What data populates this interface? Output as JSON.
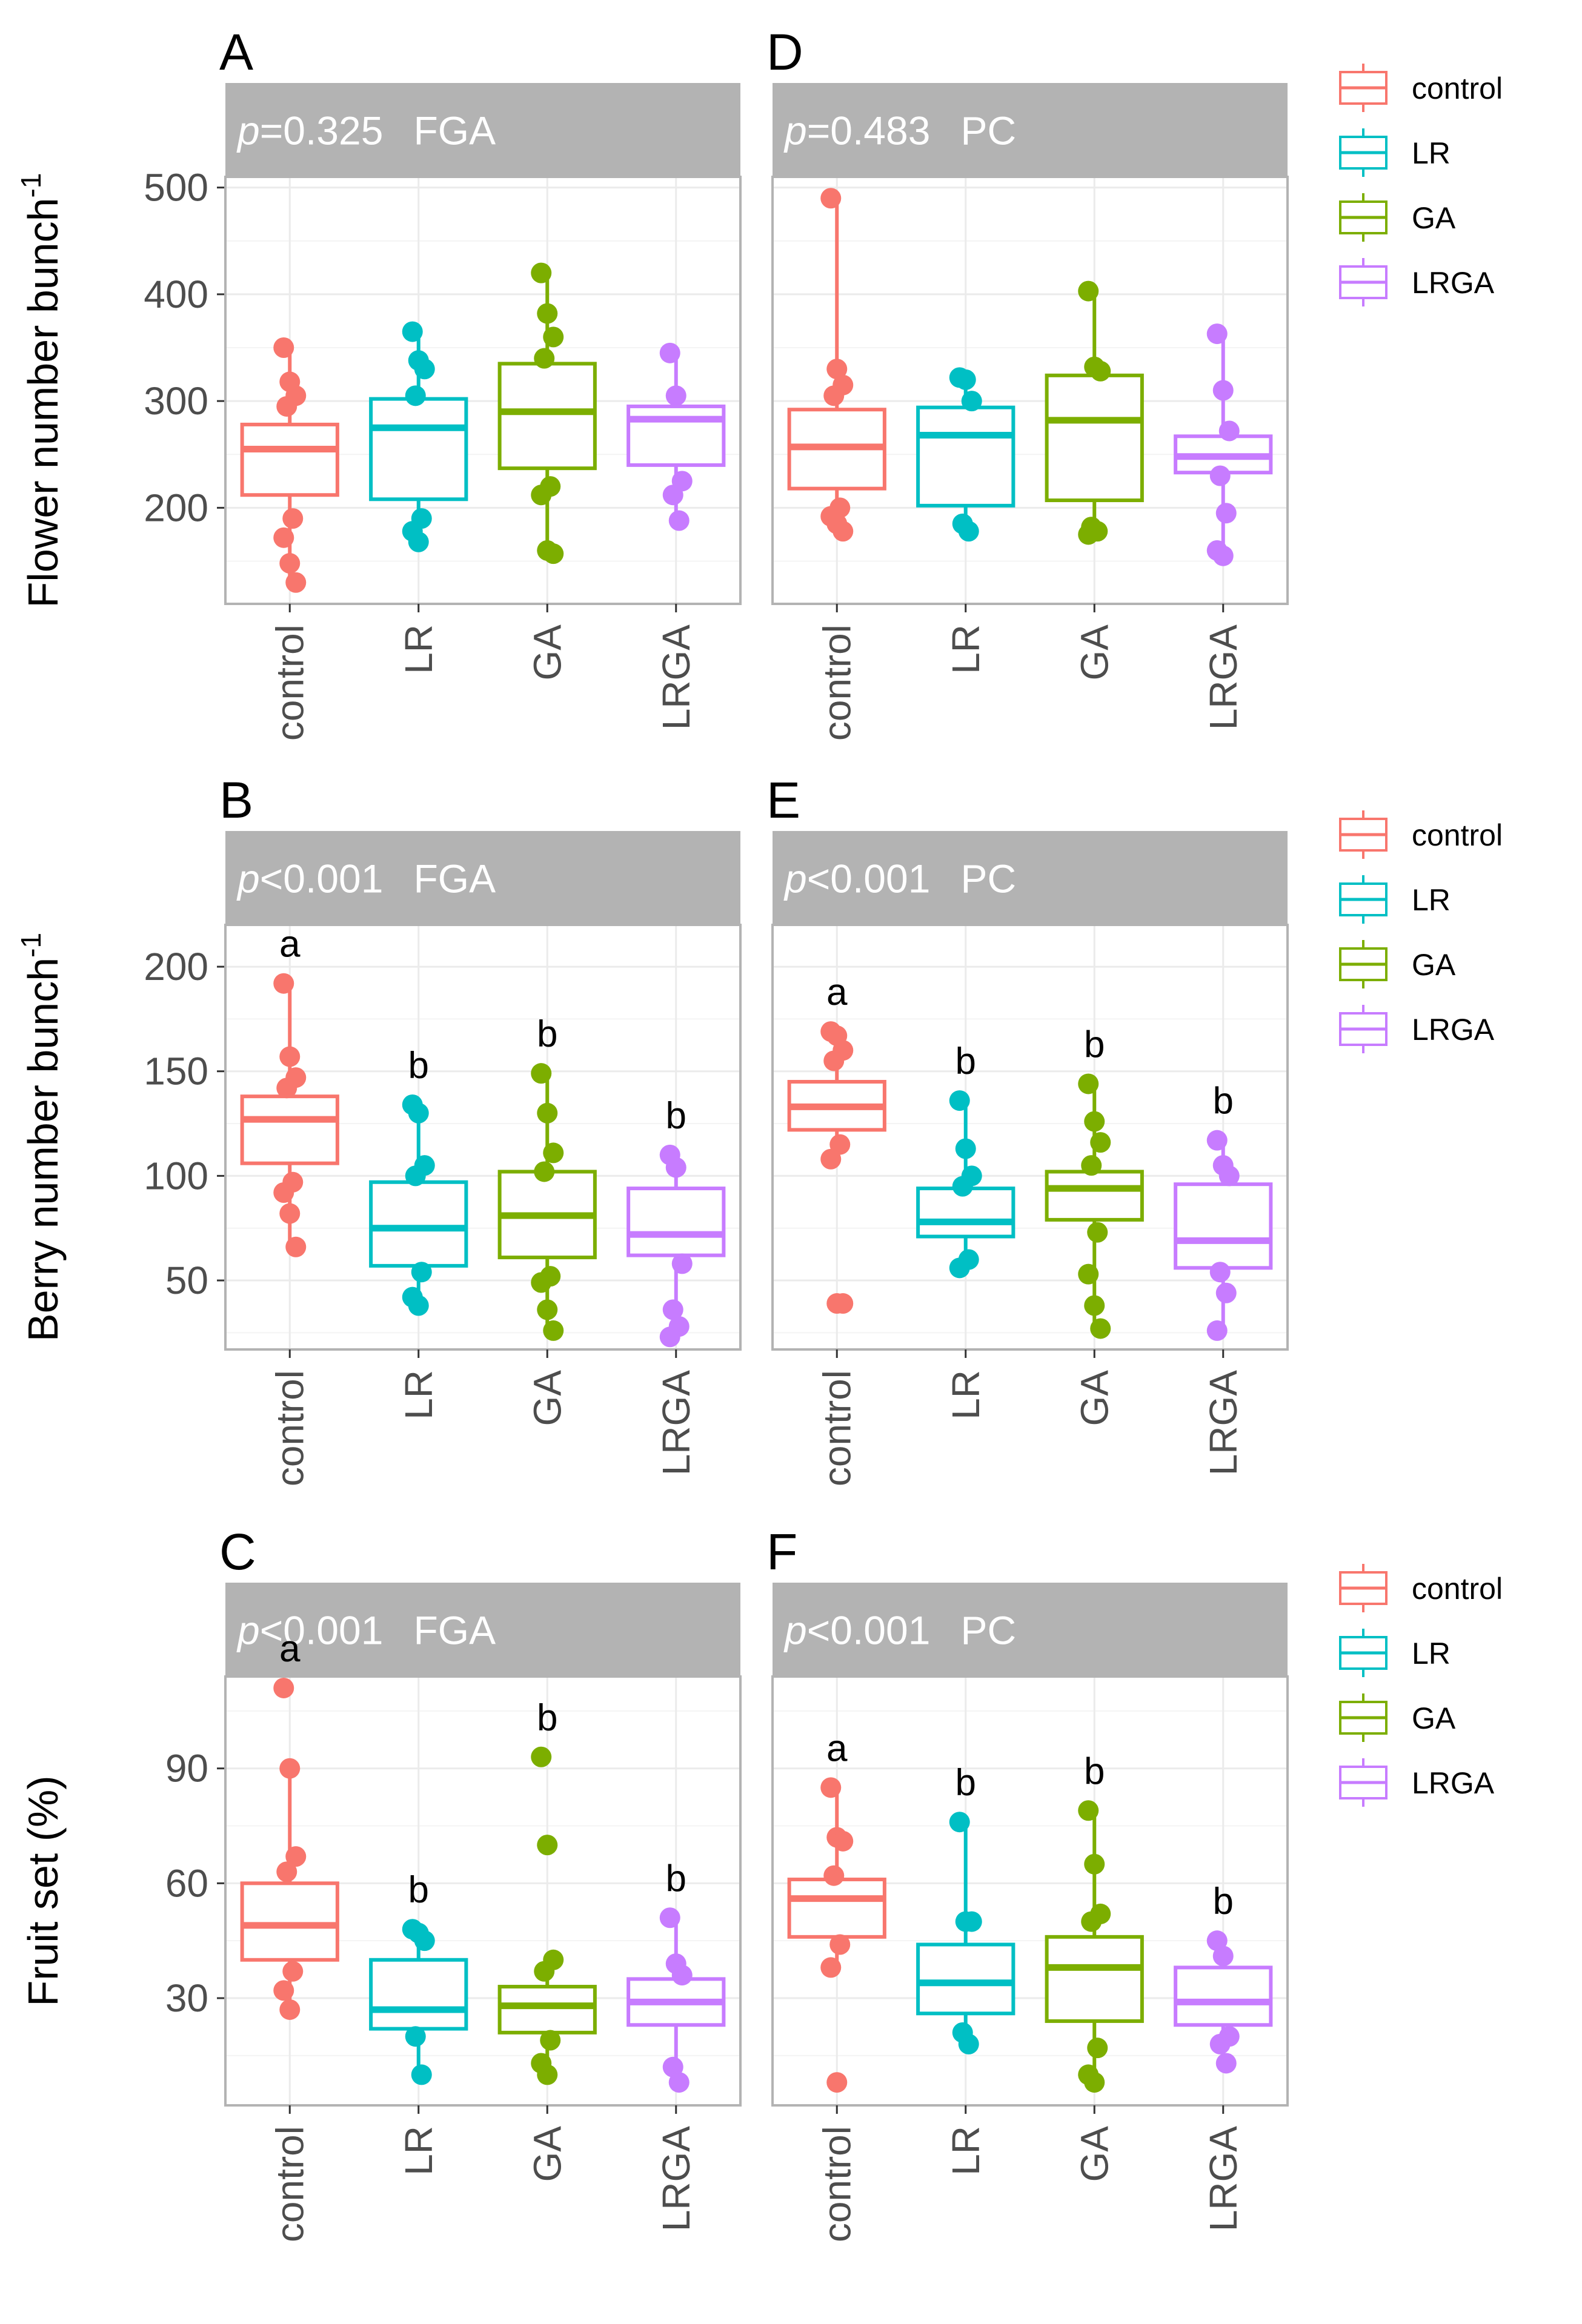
{
  "colors": {
    "control": "#F8766D",
    "LR": "#00BFC4",
    "GA": "#7CAE00",
    "LRGA": "#C77CFF",
    "strip": "#b3b3b3",
    "strip_text": "#ffffff",
    "grid_major": "#ebebeb",
    "grid_minor": "#f4f4f4",
    "panel_border": "#b3b3b3",
    "axis_text": "#4d4d4d"
  },
  "legend": {
    "items": [
      {
        "label": "control",
        "group": "control"
      },
      {
        "label": "LR",
        "group": "LR"
      },
      {
        "label": "GA",
        "group": "GA"
      },
      {
        "label": "LRGA",
        "group": "LRGA"
      }
    ]
  },
  "chart_data": [
    {
      "row": 0,
      "type": "boxplot",
      "ylabel": "Flower number bunch",
      "ylabel_superscript": "-1",
      "ylim": [
        110,
        510
      ],
      "yticks": [
        200,
        300,
        400,
        500
      ],
      "categories": [
        "control",
        "LR",
        "GA",
        "LRGA"
      ],
      "panels": [
        {
          "letter": "A",
          "p_symbol": "p",
          "p_text": "=0.325",
          "facet": "FGA",
          "boxes": [
            {
              "group": "control",
              "q1": 212,
              "median": 255,
              "q3": 278,
              "whisker_low": 130,
              "whisker_high": 350,
              "letter": ""
            },
            {
              "group": "LR",
              "q1": 208,
              "median": 275,
              "q3": 302,
              "whisker_low": 168,
              "whisker_high": 365,
              "letter": ""
            },
            {
              "group": "GA",
              "q1": 237,
              "median": 290,
              "q3": 335,
              "whisker_low": 157,
              "whisker_high": 420,
              "letter": ""
            },
            {
              "group": "LRGA",
              "q1": 240,
              "median": 283,
              "q3": 295,
              "whisker_low": 188,
              "whisker_high": 345,
              "letter": ""
            }
          ],
          "points": {
            "control": [
              350,
              318,
              305,
              295,
              190,
              172,
              148,
              130
            ],
            "LR": [
              365,
              338,
              330,
              305,
              190,
              178,
              168
            ],
            "GA": [
              420,
              382,
              360,
              340,
              220,
              212,
              160,
              157
            ],
            "LRGA": [
              345,
              305,
              225,
              212,
              188
            ]
          }
        },
        {
          "letter": "D",
          "p_symbol": "p",
          "p_text": "=0.483",
          "facet": "PC",
          "boxes": [
            {
              "group": "control",
              "q1": 218,
              "median": 257,
              "q3": 292,
              "whisker_low": 178,
              "whisker_high": 490,
              "letter": ""
            },
            {
              "group": "LR",
              "q1": 202,
              "median": 268,
              "q3": 294,
              "whisker_low": 175,
              "whisker_high": 322,
              "letter": ""
            },
            {
              "group": "GA",
              "q1": 207,
              "median": 282,
              "q3": 324,
              "whisker_low": 175,
              "whisker_high": 403,
              "letter": ""
            },
            {
              "group": "LRGA",
              "q1": 233,
              "median": 248,
              "q3": 267,
              "whisker_low": 155,
              "whisker_high": 363,
              "letter": ""
            }
          ],
          "points": {
            "control": [
              490,
              330,
              315,
              305,
              200,
              192,
              185,
              178
            ],
            "LR": [
              322,
              320,
              300,
              185,
              178
            ],
            "GA": [
              403,
              332,
              328,
              182,
              178,
              175
            ],
            "LRGA": [
              363,
              310,
              272,
              230,
              195,
              160,
              155
            ]
          }
        }
      ]
    },
    {
      "row": 1,
      "type": "boxplot",
      "ylabel": "Berry number bunch",
      "ylabel_superscript": "-1",
      "ylim": [
        17,
        220
      ],
      "yticks": [
        50,
        100,
        150,
        200
      ],
      "categories": [
        "control",
        "LR",
        "GA",
        "LRGA"
      ],
      "panels": [
        {
          "letter": "B",
          "p_symbol": "p",
          "p_text": "<0.001",
          "facet": "FGA",
          "boxes": [
            {
              "group": "control",
              "q1": 106,
              "median": 127,
              "q3": 138,
              "whisker_low": 65,
              "whisker_high": 192,
              "letter": "a"
            },
            {
              "group": "LR",
              "q1": 57,
              "median": 75,
              "q3": 97,
              "whisker_low": 37,
              "whisker_high": 134,
              "letter": "b"
            },
            {
              "group": "GA",
              "q1": 61,
              "median": 81,
              "q3": 102,
              "whisker_low": 26,
              "whisker_high": 149,
              "letter": "b"
            },
            {
              "group": "LRGA",
              "q1": 62,
              "median": 72,
              "q3": 94,
              "whisker_low": 23,
              "whisker_high": 110,
              "letter": "b"
            }
          ],
          "points": {
            "control": [
              192,
              157,
              147,
              142,
              97,
              92,
              82,
              66
            ],
            "LR": [
              134,
              130,
              105,
              100,
              54,
              42,
              38
            ],
            "GA": [
              149,
              130,
              111,
              102,
              52,
              49,
              36,
              26
            ],
            "LRGA": [
              110,
              104,
              58,
              36,
              28,
              23
            ]
          }
        },
        {
          "letter": "E",
          "p_symbol": "p",
          "p_text": "<0.001",
          "facet": "PC",
          "boxes": [
            {
              "group": "control",
              "q1": 122,
              "median": 133,
              "q3": 145,
              "whisker_low": 108,
              "whisker_high": 169,
              "letter": "a"
            },
            {
              "group": "LR",
              "q1": 71,
              "median": 78,
              "q3": 94,
              "whisker_low": 56,
              "whisker_high": 136,
              "letter": "b"
            },
            {
              "group": "GA",
              "q1": 79,
              "median": 94,
              "q3": 102,
              "whisker_low": 27,
              "whisker_high": 144,
              "letter": "b"
            },
            {
              "group": "LRGA",
              "q1": 56,
              "median": 69,
              "q3": 96,
              "whisker_low": 26,
              "whisker_high": 117,
              "letter": "b"
            }
          ],
          "points": {
            "control": [
              169,
              167,
              160,
              155,
              115,
              108,
              39,
              39
            ],
            "LR": [
              136,
              113,
              100,
              95,
              60,
              56
            ],
            "GA": [
              144,
              126,
              116,
              105,
              73,
              53,
              38,
              27
            ],
            "LRGA": [
              117,
              105,
              100,
              54,
              44,
              26
            ]
          }
        }
      ]
    },
    {
      "row": 2,
      "type": "boxplot",
      "ylabel": "Fruit set (%)",
      "ylabel_superscript": "",
      "ylim": [
        2,
        114
      ],
      "yticks": [
        30,
        60,
        90
      ],
      "categories": [
        "control",
        "LR",
        "GA",
        "LRGA"
      ],
      "panels": [
        {
          "letter": "C",
          "p_symbol": "p",
          "p_text": "<0.001",
          "facet": "FGA",
          "boxes": [
            {
              "group": "control",
              "q1": 40,
              "median": 49,
              "q3": 60,
              "whisker_low": 27,
              "whisker_high": 90,
              "letter": "a"
            },
            {
              "group": "LR",
              "q1": 22,
              "median": 27,
              "q3": 40,
              "whisker_low": 10,
              "whisker_high": 48,
              "letter": "b"
            },
            {
              "group": "GA",
              "q1": 21,
              "median": 28,
              "q3": 33,
              "whisker_low": 10,
              "whisker_high": 40,
              "letter": "b"
            },
            {
              "group": "LRGA",
              "q1": 23,
              "median": 29,
              "q3": 35,
              "whisker_low": 8,
              "whisker_high": 51,
              "letter": "b"
            }
          ],
          "points": {
            "control": [
              111,
              90,
              67,
              63,
              37,
              32,
              27
            ],
            "LR": [
              48,
              47,
              45,
              20,
              10
            ],
            "GA": [
              93,
              70,
              40,
              37,
              19,
              13,
              10
            ],
            "LRGA": [
              51,
              39,
              36,
              12,
              8
            ]
          }
        },
        {
          "letter": "F",
          "p_symbol": "p",
          "p_text": "<0.001",
          "facet": "PC",
          "boxes": [
            {
              "group": "control",
              "q1": 46,
              "median": 56,
              "q3": 61,
              "whisker_low": 38,
              "whisker_high": 85,
              "letter": "a"
            },
            {
              "group": "LR",
              "q1": 26,
              "median": 34,
              "q3": 44,
              "whisker_low": 18,
              "whisker_high": 76,
              "letter": "b"
            },
            {
              "group": "GA",
              "q1": 24,
              "median": 38,
              "q3": 46,
              "whisker_low": 8,
              "whisker_high": 79,
              "letter": "b"
            },
            {
              "group": "LRGA",
              "q1": 23,
              "median": 29,
              "q3": 38,
              "whisker_low": 13,
              "whisker_high": 45,
              "letter": "b"
            }
          ],
          "points": {
            "control": [
              85,
              72,
              71,
              62,
              44,
              38,
              8
            ],
            "LR": [
              76,
              50,
              50,
              21,
              18
            ],
            "GA": [
              79,
              65,
              52,
              50,
              17,
              10,
              8
            ],
            "LRGA": [
              45,
              41,
              20,
              18,
              13
            ]
          }
        }
      ]
    }
  ]
}
